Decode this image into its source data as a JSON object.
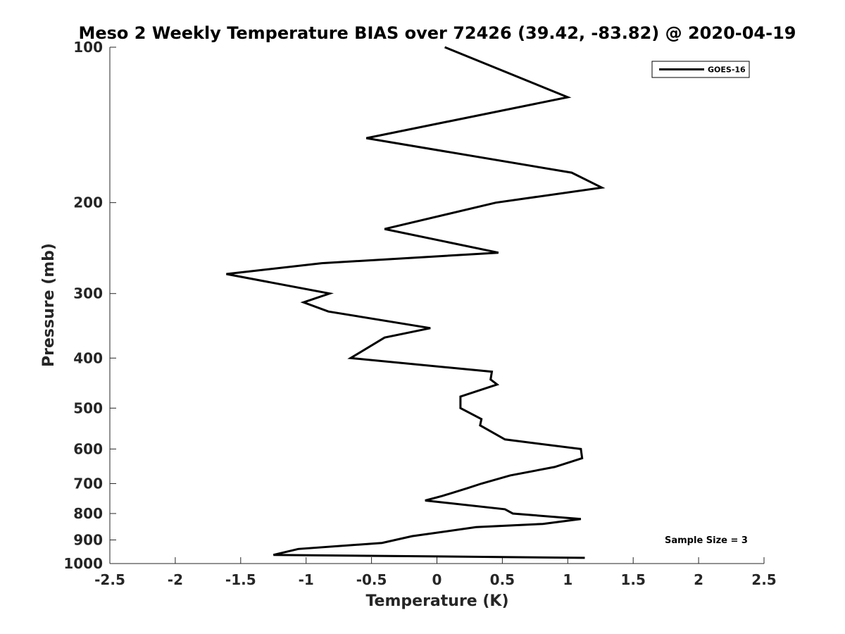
{
  "chart_data": {
    "type": "line",
    "title": "Meso 2 Weekly Temperature BIAS over 72426 (39.42, -83.82) @ 2020-04-19",
    "xlabel": "Temperature (K)",
    "ylabel": "Pressure (mb)",
    "xlim": [
      -2.5,
      2.5
    ],
    "ylim": [
      100,
      1000
    ],
    "y_scale": "log",
    "y_reversed": true,
    "x_ticks": [
      "-2.5",
      "-2",
      "-1.5",
      "-1",
      "-0.5",
      "0",
      "0.5",
      "1",
      "1.5",
      "2",
      "2.5"
    ],
    "y_ticks": [
      "100",
      "200",
      "300",
      "400",
      "500",
      "600",
      "700",
      "800",
      "900",
      "1000"
    ],
    "grid": false,
    "legend_position": "top-right",
    "annotation": "Sample Size = 3",
    "series": [
      {
        "name": "GOES-16",
        "color": "#000000",
        "points": [
          {
            "t": 0.06,
            "p": 100
          },
          {
            "t": 1.0,
            "p": 125
          },
          {
            "t": -0.54,
            "p": 150
          },
          {
            "t": 1.03,
            "p": 175
          },
          {
            "t": 1.26,
            "p": 187
          },
          {
            "t": 0.45,
            "p": 200
          },
          {
            "t": -0.4,
            "p": 225
          },
          {
            "t": 0.47,
            "p": 250
          },
          {
            "t": -0.88,
            "p": 262
          },
          {
            "t": -1.61,
            "p": 275
          },
          {
            "t": -0.82,
            "p": 300
          },
          {
            "t": -1.02,
            "p": 312
          },
          {
            "t": -0.83,
            "p": 325
          },
          {
            "t": -0.05,
            "p": 350
          },
          {
            "t": -0.4,
            "p": 365
          },
          {
            "t": -0.66,
            "p": 400
          },
          {
            "t": 0.42,
            "p": 425
          },
          {
            "t": 0.41,
            "p": 440
          },
          {
            "t": 0.46,
            "p": 450
          },
          {
            "t": 0.18,
            "p": 475
          },
          {
            "t": 0.18,
            "p": 500
          },
          {
            "t": 0.34,
            "p": 525
          },
          {
            "t": 0.33,
            "p": 540
          },
          {
            "t": 0.52,
            "p": 575
          },
          {
            "t": 1.1,
            "p": 600
          },
          {
            "t": 1.11,
            "p": 625
          },
          {
            "t": 0.9,
            "p": 650
          },
          {
            "t": 0.56,
            "p": 675
          },
          {
            "t": 0.34,
            "p": 700
          },
          {
            "t": 0.23,
            "p": 715
          },
          {
            "t": 0.04,
            "p": 740
          },
          {
            "t": -0.09,
            "p": 755
          },
          {
            "t": 0.52,
            "p": 785
          },
          {
            "t": 0.58,
            "p": 800
          },
          {
            "t": 1.1,
            "p": 820
          },
          {
            "t": 0.81,
            "p": 838
          },
          {
            "t": 0.3,
            "p": 850
          },
          {
            "t": -0.19,
            "p": 885
          },
          {
            "t": -0.42,
            "p": 912
          },
          {
            "t": -1.06,
            "p": 937
          },
          {
            "t": -1.25,
            "p": 962
          },
          {
            "t": 1.13,
            "p": 975
          }
        ]
      }
    ]
  }
}
